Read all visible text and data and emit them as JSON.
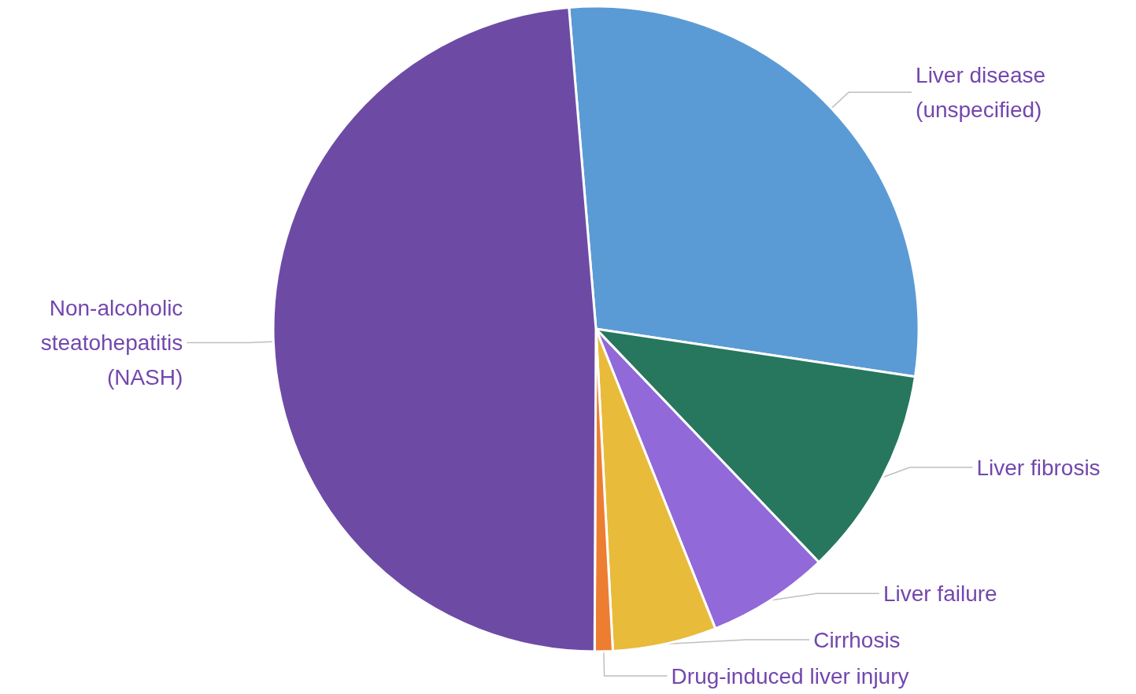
{
  "chart_data": {
    "type": "pie",
    "categories": [
      "Liver disease\n(unspecified)",
      "Liver fibrosis",
      "Liver failure",
      "Cirrhosis",
      "Drug-induced liver injury",
      "Non-alcoholic\nsteatohepatitis\n(NASH)"
    ],
    "values": [
      28.7,
      10.5,
      6.1,
      5.2,
      0.9,
      48.6
    ],
    "colors": [
      "#5b9bd5",
      "#26775d",
      "#9169d8",
      "#e9bb3b",
      "#ed7d31",
      "#6d4ba5"
    ],
    "legend": false
  }
}
